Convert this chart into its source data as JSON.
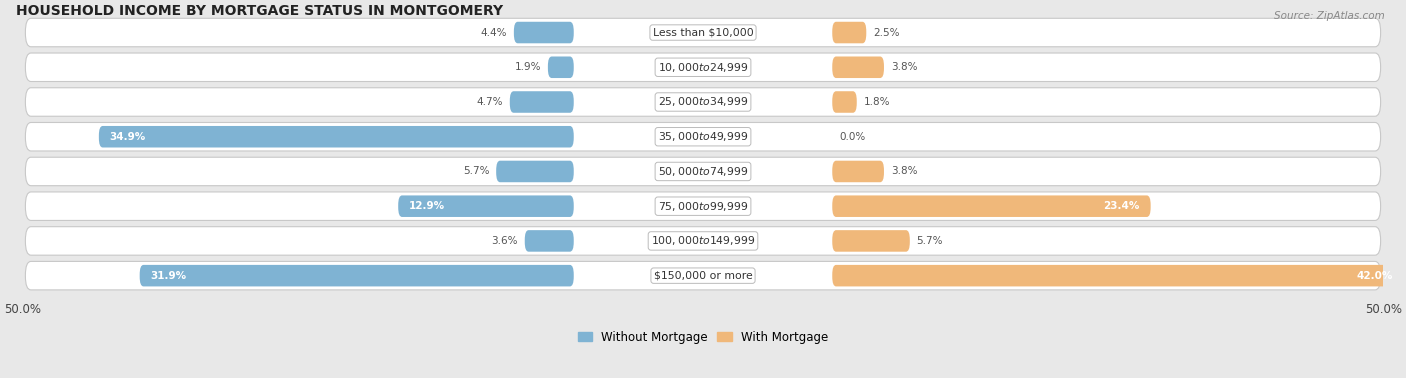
{
  "title": "HOUSEHOLD INCOME BY MORTGAGE STATUS IN MONTGOMERY",
  "source": "Source: ZipAtlas.com",
  "categories": [
    "Less than $10,000",
    "$10,000 to $24,999",
    "$25,000 to $34,999",
    "$35,000 to $49,999",
    "$50,000 to $74,999",
    "$75,000 to $99,999",
    "$100,000 to $149,999",
    "$150,000 or more"
  ],
  "without_mortgage": [
    4.4,
    1.9,
    4.7,
    34.9,
    5.7,
    12.9,
    3.6,
    31.9
  ],
  "with_mortgage": [
    2.5,
    3.8,
    1.8,
    0.0,
    3.8,
    23.4,
    5.7,
    42.0
  ],
  "color_without": "#7fb3d3",
  "color_with": "#f0b87a",
  "axis_limit": 50.0,
  "bg_color": "#e8e8e8",
  "row_bg": "#f0f0f0",
  "label_threshold": 10.0
}
